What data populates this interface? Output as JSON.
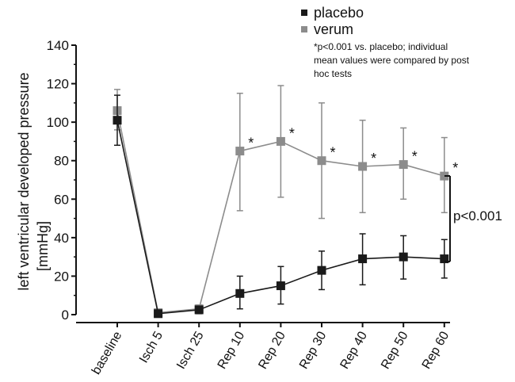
{
  "chart_data": {
    "type": "line",
    "categories": [
      "baseline",
      "Isch 5",
      "Isch 25",
      "Rep 10",
      "Rep 20",
      "Rep 30",
      "Rep 40",
      "Rep 50",
      "Rep 60"
    ],
    "ylabel_line1": "left ventricular developed pressure",
    "ylabel_line2": "[mmHg]",
    "ylim": [
      0,
      140
    ],
    "yticks": [
      0,
      20,
      40,
      60,
      80,
      100,
      120,
      140
    ],
    "series": [
      {
        "name": "placebo",
        "color": "#1a1a1a",
        "values": [
          101,
          0.5,
          2.5,
          11,
          15,
          23,
          29,
          30,
          29
        ],
        "err_low": [
          88,
          0,
          0.5,
          3,
          5.5,
          13,
          15.5,
          18.5,
          19
        ],
        "err_high": [
          114,
          1,
          4,
          20,
          25,
          33,
          42,
          41,
          39
        ]
      },
      {
        "name": "verum",
        "color": "#8c8c8c",
        "values": [
          106,
          1,
          3,
          85,
          90,
          80,
          77,
          78,
          72
        ],
        "err_low": [
          96,
          0,
          1,
          54,
          61,
          50,
          53,
          60,
          53
        ],
        "err_high": [
          117,
          2,
          5,
          115,
          119,
          110,
          101,
          97,
          92
        ]
      }
    ],
    "significance_marks": [
      "*",
      "*",
      "*",
      "*",
      "*",
      "*"
    ],
    "significance_categories": [
      "Rep 10",
      "Rep 20",
      "Rep 30",
      "Rep 40",
      "Rep 50",
      "Rep 60"
    ],
    "overall_p_label": "p<0.001",
    "legend_position": "top-right",
    "footnote_lines": [
      "*p<0.001 vs. placebo; individual",
      "mean values were compared by post",
      "hoc tests"
    ],
    "grid": false
  }
}
